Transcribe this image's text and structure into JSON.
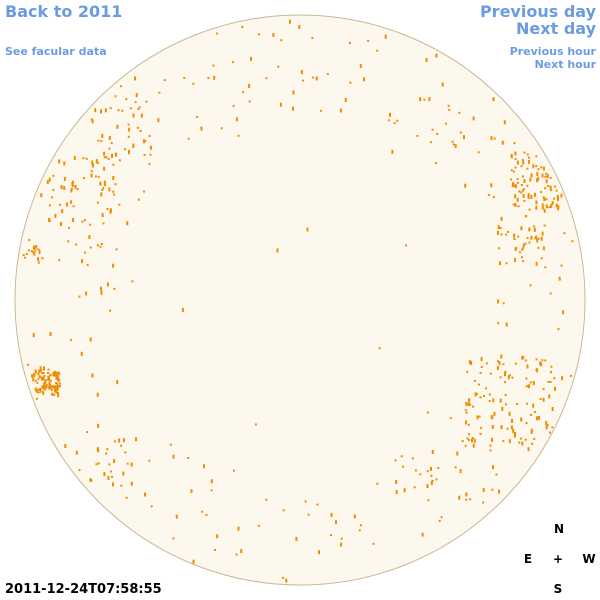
{
  "header": {
    "back_link": "Back to 2011",
    "data_link": "See facular data"
  },
  "navigation": {
    "previous_day": "Previous day",
    "next_day": "Next day",
    "previous_hour": "Previous hour",
    "next_hour": "Next hour"
  },
  "compass": {
    "north": "N",
    "east": "E",
    "center": "+",
    "west": "W",
    "south": "S"
  },
  "timestamp": "2011-12-24T07:58:55"
}
